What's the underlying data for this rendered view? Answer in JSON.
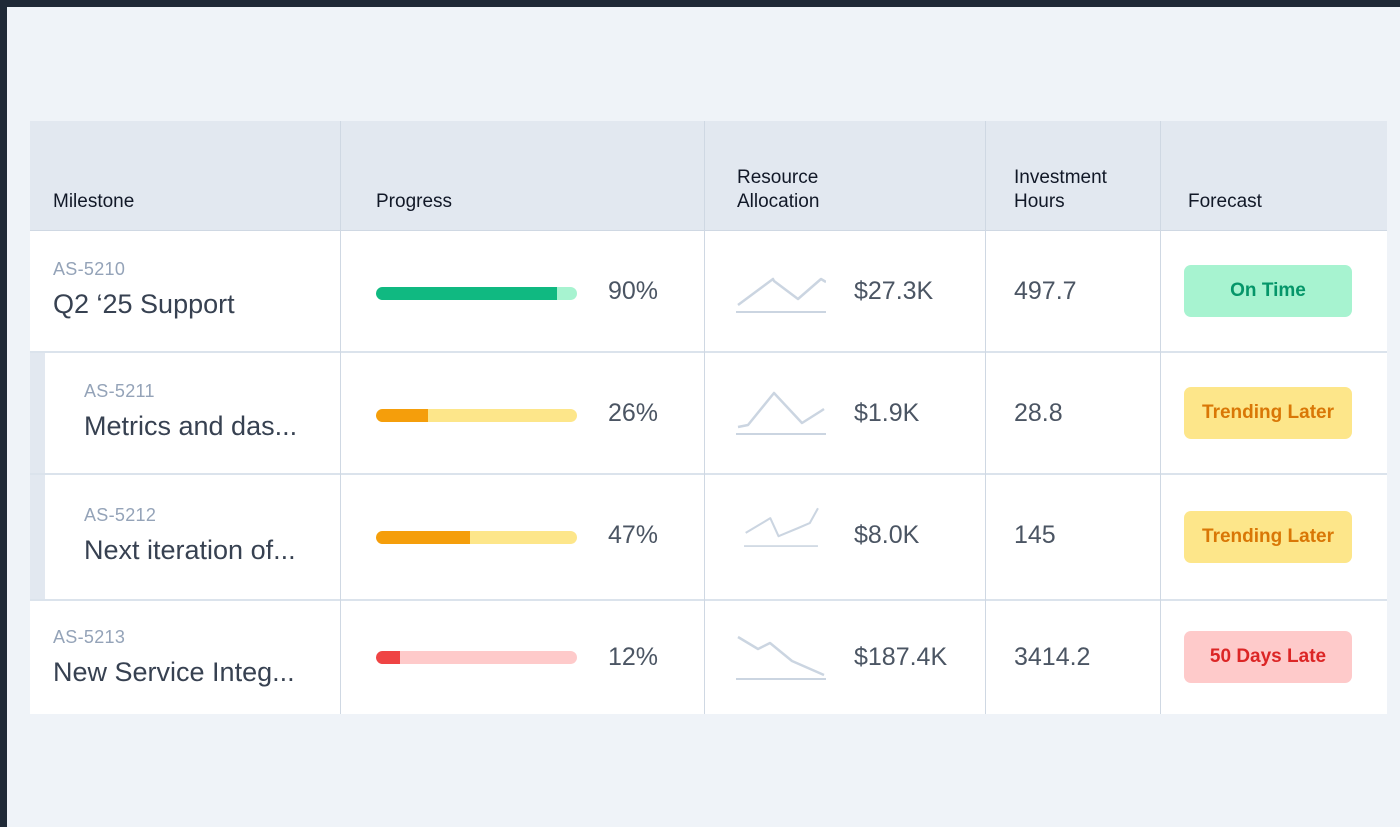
{
  "header": {
    "milestone": "Milestone",
    "progress": "Progress",
    "resource_line1": "Resource",
    "resource_line2": "Allocation",
    "investment_line1": "Investment",
    "investment_line2": "Hours",
    "forecast": "Forecast"
  },
  "rows": [
    {
      "id": "AS-5210",
      "name": "Q2 ‘25 Support",
      "progress_percent": 90,
      "progress_label": "90%",
      "resource": "$27.3K",
      "hours": "497.7",
      "forecast": "On Time",
      "indent": false,
      "colors": {
        "fill": "#10b981",
        "track": "#a7f3d0",
        "badge_bg": "#a7f3d0",
        "badge_text": "#059669"
      }
    },
    {
      "id": "AS-5211",
      "name": "Metrics and das...",
      "progress_percent": 26,
      "progress_label": "26%",
      "resource": "$1.9K",
      "hours": "28.8",
      "forecast": "Trending Later",
      "indent": true,
      "colors": {
        "fill": "#f59e0b",
        "track": "#fde68a",
        "badge_bg": "#fde68a",
        "badge_text": "#d97706"
      }
    },
    {
      "id": "AS-5212",
      "name": "Next iteration of...",
      "progress_percent": 47,
      "progress_label": "47%",
      "resource": "$8.0K",
      "hours": "145",
      "forecast": "Trending Later",
      "indent": true,
      "colors": {
        "fill": "#f59e0b",
        "track": "#fde68a",
        "badge_bg": "#fde68a",
        "badge_text": "#d97706"
      }
    },
    {
      "id": "AS-5213",
      "name": "New Service Integ...",
      "progress_percent": 12,
      "progress_label": "12%",
      "resource": "$187.4K",
      "hours": "3414.2",
      "forecast": "50 Days Late",
      "indent": false,
      "colors": {
        "fill": "#ef4444",
        "track": "#fecaca",
        "badge_bg": "#fecaca",
        "badge_text": "#dc2626"
      }
    }
  ],
  "sparkline_color": "#cbd5e1"
}
